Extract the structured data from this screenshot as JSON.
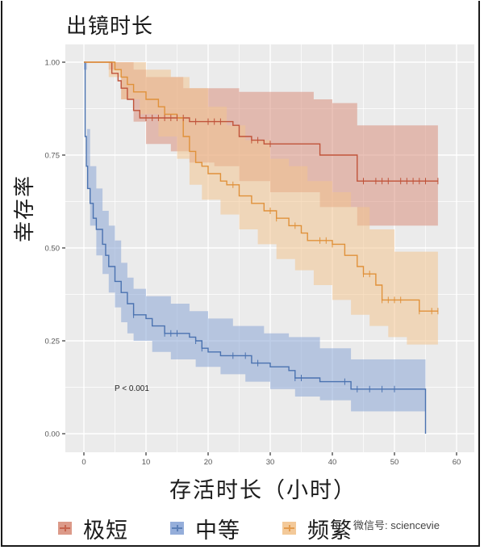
{
  "title": "出镜时长",
  "xlabel": "存活时长（小时）",
  "ylabel": "幸存率",
  "pvalue_text": "P < 0.001",
  "watermark": "微信号: sciencevie",
  "colors": {
    "panel_bg": "#ebebeb",
    "grid": "#ffffff",
    "extreme_short": "#c0533a",
    "medium": "#4a72b0",
    "frequent": "#e0913a",
    "extreme_short_fill": "#d9907d",
    "medium_fill": "#8aa6d6",
    "frequent_fill": "#f2c48f"
  },
  "legend": [
    {
      "label": "极短",
      "key": "extreme_short"
    },
    {
      "label": "中等",
      "key": "medium"
    },
    {
      "label": "频繁",
      "key": "frequent"
    }
  ],
  "chart_data": {
    "type": "line",
    "subtype": "kaplan-meier step curves with confidence bands and censor marks",
    "title": "出镜时长",
    "xlabel": "存活时长（小时）",
    "ylabel": "幸存率",
    "xlim": [
      -3,
      63
    ],
    "ylim": [
      -0.05,
      1.05
    ],
    "x_ticks": [
      0,
      10,
      20,
      30,
      40,
      50,
      60
    ],
    "y_ticks": [
      0.0,
      0.25,
      0.5,
      0.75,
      1.0
    ],
    "y_tick_labels": [
      "0.00",
      "0.25",
      "0.50",
      "0.75",
      "1.00"
    ],
    "grid": true,
    "legend_position": "bottom",
    "annotations": [
      {
        "text": "P < 0.001",
        "x": 5,
        "y": 0.12
      }
    ],
    "series": [
      {
        "name": "极短",
        "key": "extreme_short",
        "steps": [
          [
            0,
            1.0
          ],
          [
            4,
            1.0
          ],
          [
            4.5,
            0.97
          ],
          [
            5.5,
            0.95
          ],
          [
            6,
            0.93
          ],
          [
            7,
            0.9
          ],
          [
            8,
            0.87
          ],
          [
            9,
            0.85
          ],
          [
            17,
            0.84
          ],
          [
            24,
            0.83
          ],
          [
            25,
            0.8
          ],
          [
            27,
            0.79
          ],
          [
            29,
            0.78
          ],
          [
            38,
            0.75
          ],
          [
            44,
            0.68
          ],
          [
            57,
            0.68
          ]
        ],
        "upper": [
          [
            0,
            1.0
          ],
          [
            4,
            1.0
          ],
          [
            6,
            1.0
          ],
          [
            8,
            0.98
          ],
          [
            10,
            0.96
          ],
          [
            16,
            0.93
          ],
          [
            25,
            0.92
          ],
          [
            37,
            0.9
          ],
          [
            40,
            0.89
          ],
          [
            44,
            0.83
          ],
          [
            57,
            0.83
          ]
        ],
        "lower": [
          [
            0,
            1.0
          ],
          [
            4,
            0.98
          ],
          [
            6,
            0.9
          ],
          [
            8,
            0.84
          ],
          [
            10,
            0.78
          ],
          [
            14,
            0.76
          ],
          [
            17,
            0.73
          ],
          [
            21,
            0.72
          ],
          [
            25,
            0.68
          ],
          [
            30,
            0.65
          ],
          [
            38,
            0.61
          ],
          [
            44,
            0.56
          ],
          [
            57,
            0.56
          ]
        ],
        "censor_x": [
          10,
          11,
          12,
          13,
          14,
          15,
          16,
          18,
          20,
          21,
          22,
          27,
          28,
          30,
          45,
          47,
          48,
          49,
          51,
          52,
          53,
          54,
          55,
          57
        ]
      },
      {
        "name": "中等",
        "key": "medium",
        "steps": [
          [
            0,
            1.0
          ],
          [
            0.2,
            0.8
          ],
          [
            0.4,
            0.72
          ],
          [
            0.6,
            0.66
          ],
          [
            1,
            0.62
          ],
          [
            1.5,
            0.58
          ],
          [
            2,
            0.55
          ],
          [
            3,
            0.51
          ],
          [
            3.5,
            0.48
          ],
          [
            4,
            0.45
          ],
          [
            5,
            0.41
          ],
          [
            6,
            0.38
          ],
          [
            7,
            0.35
          ],
          [
            8,
            0.32
          ],
          [
            10,
            0.31
          ],
          [
            11,
            0.29
          ],
          [
            13,
            0.27
          ],
          [
            17,
            0.26
          ],
          [
            18,
            0.25
          ],
          [
            19,
            0.23
          ],
          [
            20,
            0.22
          ],
          [
            22,
            0.21
          ],
          [
            27,
            0.19
          ],
          [
            30,
            0.18
          ],
          [
            33,
            0.17
          ],
          [
            34,
            0.15
          ],
          [
            35,
            0.15
          ],
          [
            38,
            0.14
          ],
          [
            43,
            0.12
          ],
          [
            55,
            0.12
          ],
          [
            55,
            0.0
          ]
        ],
        "upper": [
          [
            0,
            1.0
          ],
          [
            0.5,
            0.82
          ],
          [
            1,
            0.72
          ],
          [
            2,
            0.66
          ],
          [
            3,
            0.6
          ],
          [
            4,
            0.56
          ],
          [
            5,
            0.52
          ],
          [
            6,
            0.46
          ],
          [
            7,
            0.42
          ],
          [
            8,
            0.39
          ],
          [
            10,
            0.37
          ],
          [
            14,
            0.35
          ],
          [
            17,
            0.33
          ],
          [
            20,
            0.31
          ],
          [
            24,
            0.29
          ],
          [
            29,
            0.27
          ],
          [
            33,
            0.26
          ],
          [
            38,
            0.23
          ],
          [
            43,
            0.2
          ],
          [
            55,
            0.2
          ]
        ],
        "lower": [
          [
            0,
            0.98
          ],
          [
            0.5,
            0.66
          ],
          [
            1,
            0.56
          ],
          [
            2,
            0.48
          ],
          [
            3,
            0.43
          ],
          [
            4,
            0.38
          ],
          [
            5,
            0.34
          ],
          [
            6,
            0.3
          ],
          [
            7,
            0.27
          ],
          [
            8,
            0.25
          ],
          [
            11,
            0.22
          ],
          [
            14,
            0.2
          ],
          [
            18,
            0.18
          ],
          [
            22,
            0.16
          ],
          [
            26,
            0.14
          ],
          [
            30,
            0.12
          ],
          [
            34,
            0.1
          ],
          [
            38,
            0.09
          ],
          [
            43,
            0.06
          ],
          [
            55,
            0.06
          ]
        ],
        "censor_x": [
          8,
          13,
          14,
          15,
          18,
          19,
          24,
          26,
          28,
          34,
          35,
          42,
          44,
          46,
          48,
          50
        ]
      },
      {
        "name": "频繁",
        "key": "frequent",
        "steps": [
          [
            0,
            1.0
          ],
          [
            4,
            1.0
          ],
          [
            5,
            0.98
          ],
          [
            6,
            0.96
          ],
          [
            7,
            0.94
          ],
          [
            8,
            0.92
          ],
          [
            10,
            0.9
          ],
          [
            12,
            0.88
          ],
          [
            13,
            0.86
          ],
          [
            15,
            0.85
          ],
          [
            16,
            0.8
          ],
          [
            17,
            0.76
          ],
          [
            18,
            0.73
          ],
          [
            19,
            0.72
          ],
          [
            20,
            0.7
          ],
          [
            22,
            0.68
          ],
          [
            23,
            0.67
          ],
          [
            25,
            0.64
          ],
          [
            27,
            0.62
          ],
          [
            29,
            0.6
          ],
          [
            31,
            0.58
          ],
          [
            33,
            0.56
          ],
          [
            35,
            0.54
          ],
          [
            36,
            0.52
          ],
          [
            40,
            0.51
          ],
          [
            42,
            0.48
          ],
          [
            44,
            0.45
          ],
          [
            45,
            0.43
          ],
          [
            47,
            0.4
          ],
          [
            48,
            0.36
          ],
          [
            53,
            0.36
          ],
          [
            54,
            0.33
          ],
          [
            57,
            0.33
          ]
        ],
        "upper": [
          [
            0,
            1.0
          ],
          [
            6,
            1.0
          ],
          [
            10,
            0.98
          ],
          [
            14,
            0.96
          ],
          [
            17,
            0.93
          ],
          [
            20,
            0.88
          ],
          [
            23,
            0.83
          ],
          [
            26,
            0.79
          ],
          [
            30,
            0.74
          ],
          [
            33,
            0.72
          ],
          [
            36,
            0.68
          ],
          [
            40,
            0.65
          ],
          [
            43,
            0.61
          ],
          [
            46,
            0.55
          ],
          [
            50,
            0.49
          ],
          [
            57,
            0.46
          ]
        ],
        "lower": [
          [
            0,
            1.0
          ],
          [
            4,
            0.96
          ],
          [
            6,
            0.9
          ],
          [
            9,
            0.86
          ],
          [
            12,
            0.8
          ],
          [
            15,
            0.74
          ],
          [
            17,
            0.67
          ],
          [
            19,
            0.63
          ],
          [
            22,
            0.59
          ],
          [
            25,
            0.55
          ],
          [
            28,
            0.51
          ],
          [
            31,
            0.47
          ],
          [
            34,
            0.44
          ],
          [
            37,
            0.4
          ],
          [
            40,
            0.36
          ],
          [
            43,
            0.32
          ],
          [
            46,
            0.29
          ],
          [
            49,
            0.26
          ],
          [
            52,
            0.24
          ],
          [
            57,
            0.23
          ]
        ],
        "censor_x": [
          24,
          30,
          31,
          34,
          38,
          39,
          40,
          45,
          46,
          48,
          49,
          50,
          51,
          54,
          56,
          57
        ]
      }
    ]
  }
}
